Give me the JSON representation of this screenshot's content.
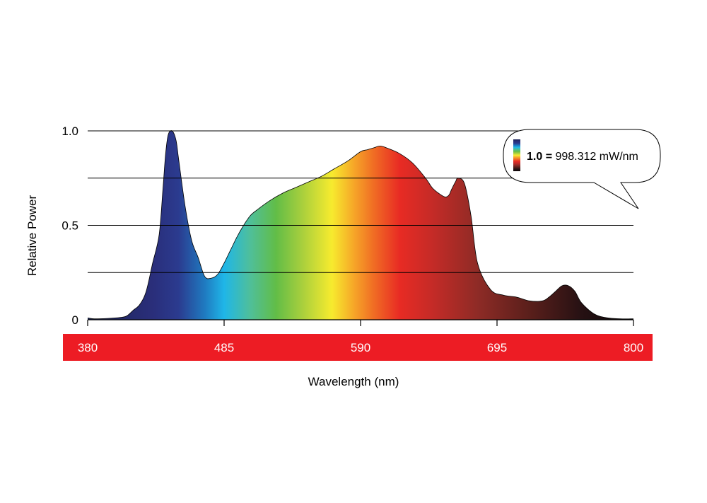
{
  "chart_data": {
    "type": "area",
    "title": "",
    "xlabel": "Wavelength (nm)",
    "ylabel": "Relative Power",
    "xlim": [
      380,
      800
    ],
    "ylim": [
      0,
      1.0
    ],
    "x_ticks": [
      380,
      485,
      590,
      695,
      800
    ],
    "x_tick_labels": [
      "380",
      "485",
      "590",
      "695",
      "800"
    ],
    "y_ticks": [
      0,
      0.5,
      1.0
    ],
    "y_tick_labels": [
      "0",
      "0.5",
      "1.0"
    ],
    "gridlines_y": [
      0.25,
      0.5,
      0.75,
      1.0
    ],
    "grid": true,
    "legend": {
      "placement": "top-right",
      "value_bold": "1.0 =",
      "value_text": " 998.312 mW/nm"
    },
    "colors": {
      "axis_band": "#ed1c24",
      "axis_band_text": "#ffffff",
      "gridline": "#000000",
      "spectrum_stops": [
        {
          "nm": 380,
          "color": "#1c2556"
        },
        {
          "nm": 430,
          "color": "#2a2e7a"
        },
        {
          "nm": 450,
          "color": "#2b3b8f"
        },
        {
          "nm": 470,
          "color": "#1f7ac0"
        },
        {
          "nm": 485,
          "color": "#1fb6e8"
        },
        {
          "nm": 505,
          "color": "#4fbf9a"
        },
        {
          "nm": 525,
          "color": "#62bd47"
        },
        {
          "nm": 545,
          "color": "#a8cf3d"
        },
        {
          "nm": 568,
          "color": "#f7eb2e"
        },
        {
          "nm": 585,
          "color": "#f6a628"
        },
        {
          "nm": 600,
          "color": "#f06d24"
        },
        {
          "nm": 620,
          "color": "#e82b24"
        },
        {
          "nm": 645,
          "color": "#c52b27"
        },
        {
          "nm": 680,
          "color": "#8e2b26"
        },
        {
          "nm": 720,
          "color": "#5a1f1b"
        },
        {
          "nm": 760,
          "color": "#261113"
        },
        {
          "nm": 800,
          "color": "#0b0608"
        }
      ]
    },
    "series": [
      {
        "x": [
          380,
          385,
          395,
          405,
          410,
          415,
          420,
          425,
          430,
          435,
          438,
          440,
          442,
          445,
          448,
          450,
          455,
          460,
          465,
          470,
          475,
          480,
          485,
          490,
          495,
          500,
          505,
          510,
          520,
          530,
          540,
          550,
          560,
          570,
          580,
          590,
          595,
          600,
          605,
          610,
          620,
          630,
          640,
          645,
          650,
          655,
          658,
          660,
          663,
          665,
          670,
          675,
          680,
          690,
          700,
          710,
          720,
          730,
          735,
          740,
          745,
          750,
          755,
          760,
          770,
          780,
          790,
          800
        ],
        "y": [
          0.01,
          0.005,
          0.007,
          0.012,
          0.02,
          0.05,
          0.08,
          0.15,
          0.3,
          0.45,
          0.7,
          0.88,
          0.98,
          1.0,
          0.95,
          0.85,
          0.6,
          0.42,
          0.33,
          0.23,
          0.22,
          0.24,
          0.3,
          0.37,
          0.44,
          0.5,
          0.55,
          0.58,
          0.63,
          0.67,
          0.7,
          0.73,
          0.76,
          0.8,
          0.84,
          0.89,
          0.9,
          0.91,
          0.92,
          0.91,
          0.88,
          0.83,
          0.75,
          0.7,
          0.67,
          0.65,
          0.66,
          0.69,
          0.73,
          0.75,
          0.72,
          0.55,
          0.3,
          0.16,
          0.13,
          0.12,
          0.1,
          0.1,
          0.12,
          0.15,
          0.18,
          0.18,
          0.15,
          0.09,
          0.03,
          0.01,
          0.005,
          0.005
        ]
      }
    ]
  }
}
